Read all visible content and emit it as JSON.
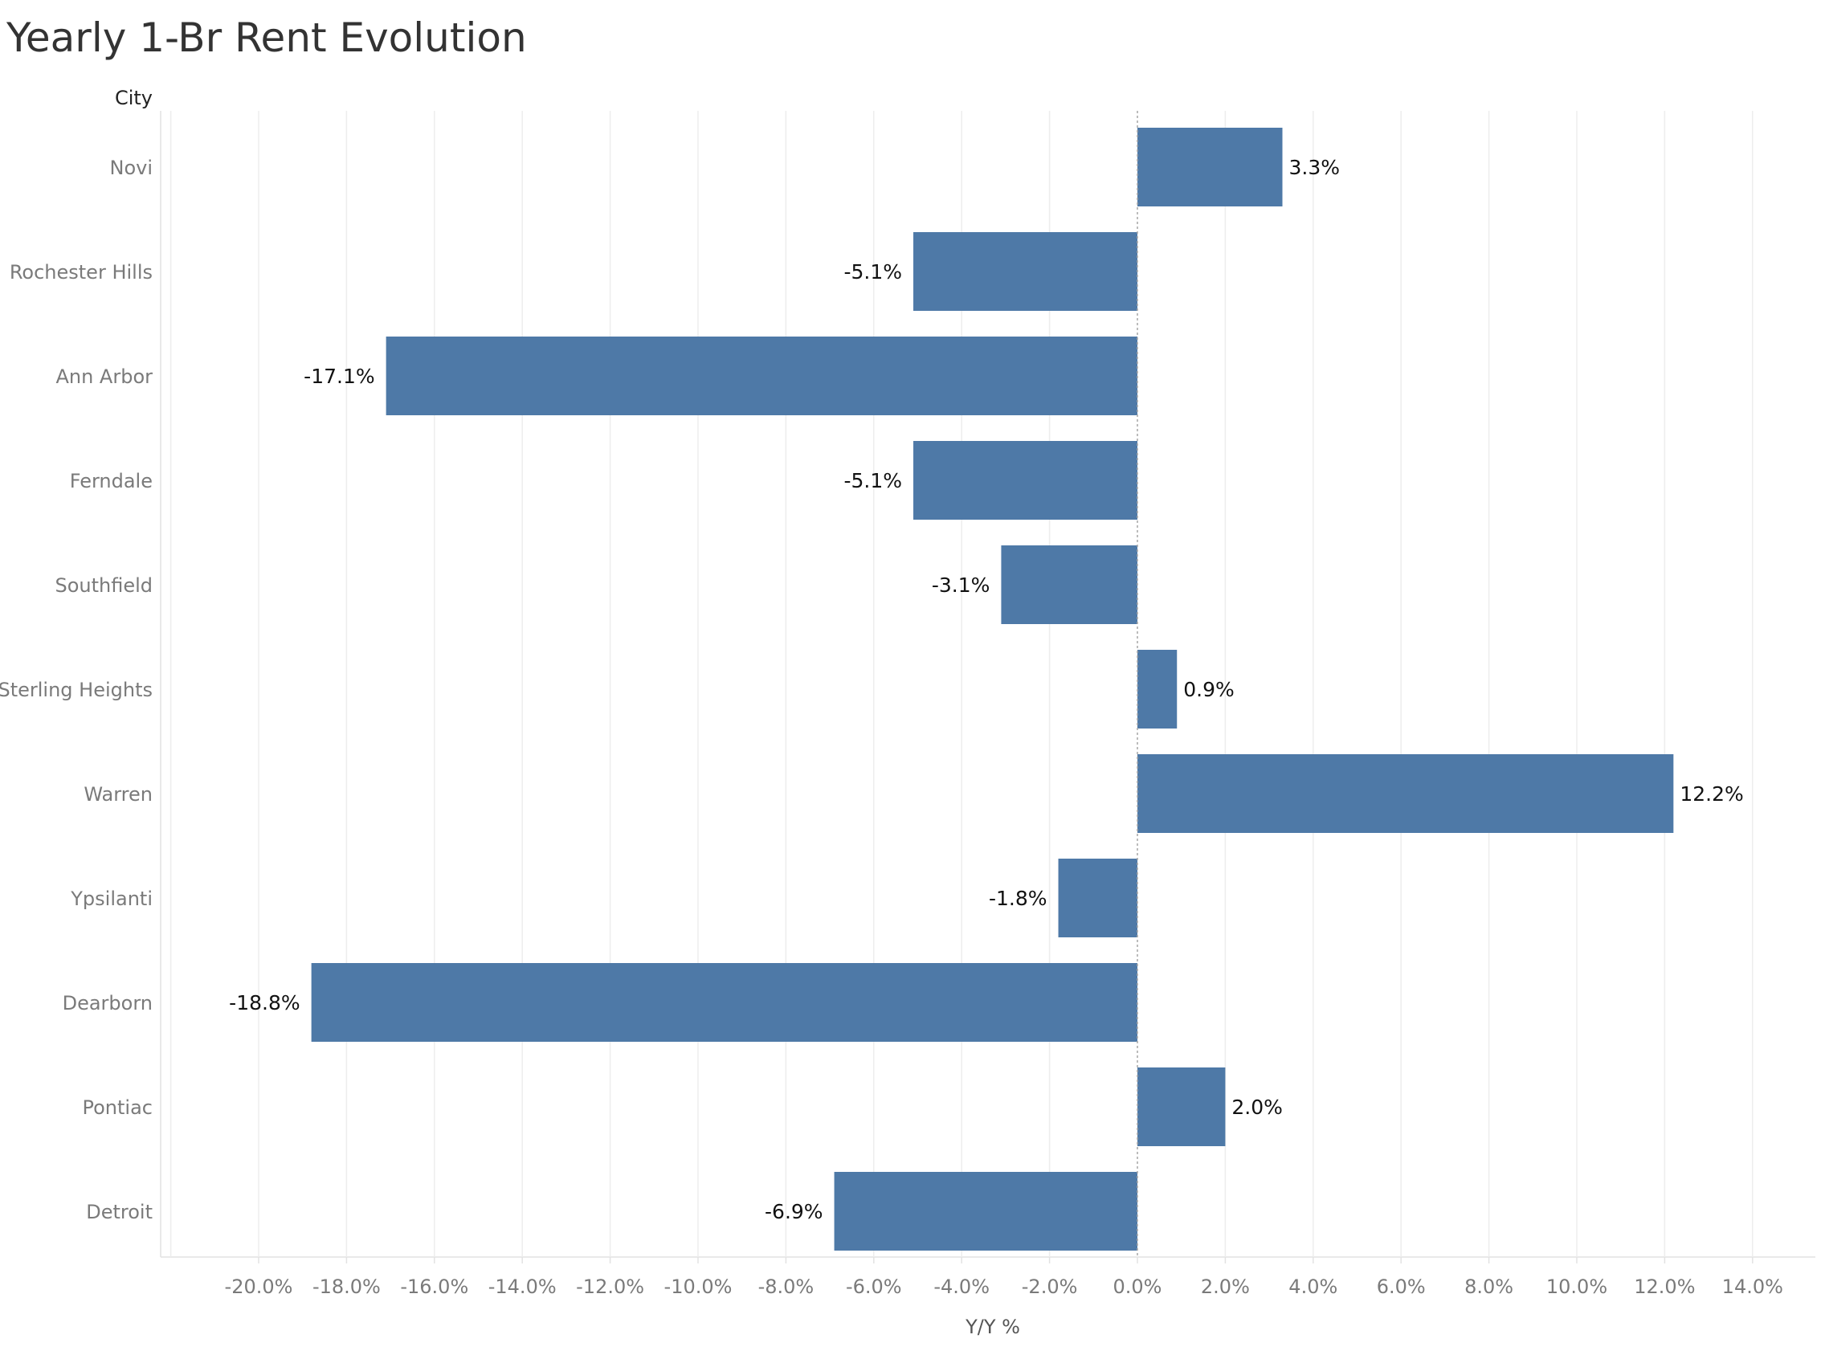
{
  "chart_data": {
    "type": "bar",
    "orientation": "horizontal",
    "title": "Yearly 1-Br Rent Evolution",
    "row_header": "City",
    "xlabel": "Y/Y %",
    "categories": [
      "Novi",
      "Rochester Hills",
      "Ann Arbor",
      "Ferndale",
      "Southfield",
      "Sterling Heights",
      "Warren",
      "Ypsilanti",
      "Dearborn",
      "Pontiac",
      "Detroit"
    ],
    "values": [
      3.3,
      -5.1,
      -17.1,
      -5.1,
      -3.1,
      0.9,
      12.2,
      -1.8,
      -18.8,
      2.0,
      -6.9
    ],
    "value_labels": [
      "3.3%",
      "-5.1%",
      "-17.1%",
      "-5.1%",
      "-3.1%",
      "0.9%",
      "12.2%",
      "-1.8%",
      "-18.8%",
      "2.0%",
      "-6.9%"
    ],
    "xlim": [
      -22,
      15
    ],
    "xticks": [
      -20,
      -18,
      -16,
      -14,
      -12,
      -10,
      -8,
      -6,
      -4,
      -2,
      0,
      2,
      4,
      6,
      8,
      10,
      12,
      14
    ],
    "xtick_labels": [
      "-20.0%",
      "-18.0%",
      "-16.0%",
      "-14.0%",
      "-12.0%",
      "-10.0%",
      "-8.0%",
      "-6.0%",
      "-4.0%",
      "-2.0%",
      "0.0%",
      "2.0%",
      "4.0%",
      "6.0%",
      "8.0%",
      "10.0%",
      "12.0%",
      "14.0%"
    ],
    "bar_color": "#4e79a7",
    "grid": true,
    "legend": "none"
  }
}
